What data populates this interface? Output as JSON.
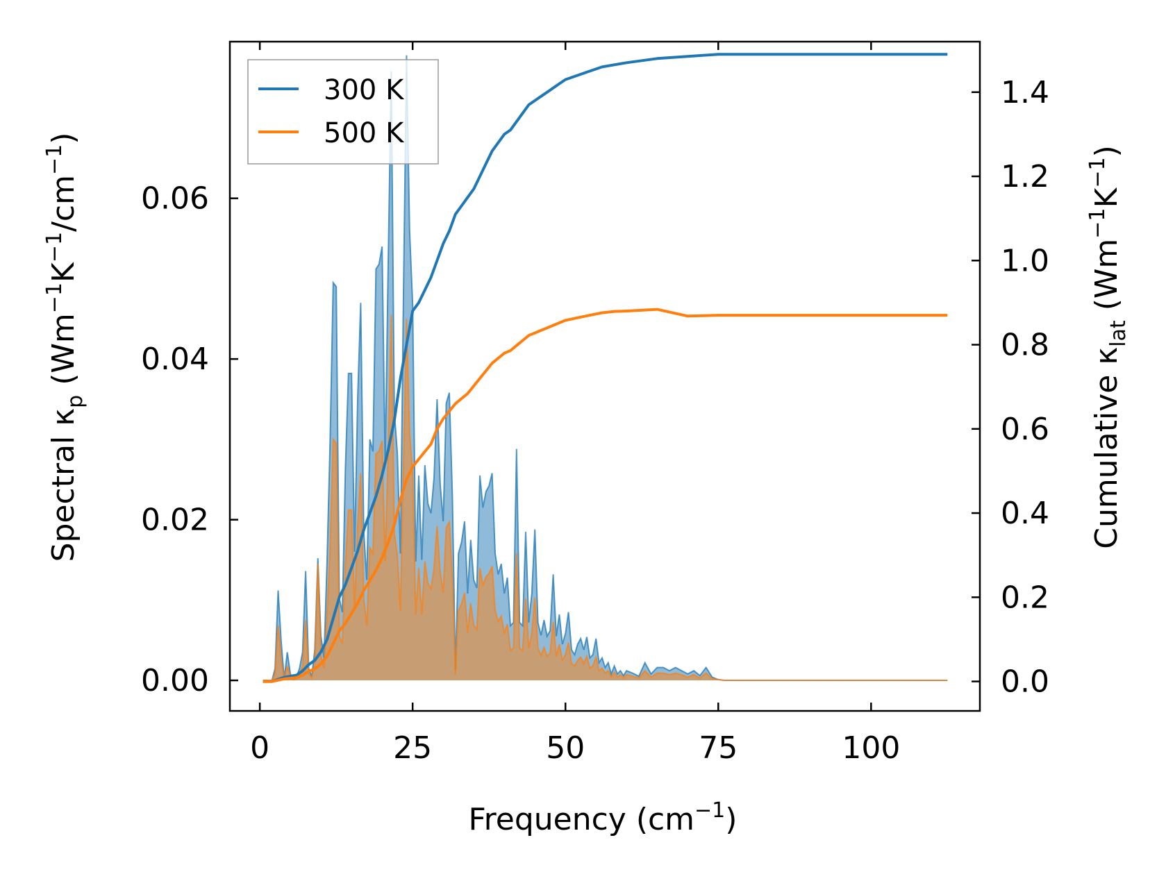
{
  "chart_data": {
    "type": "area",
    "xlabel": "Frequency (cm",
    "xlabel_sup": "−1",
    "xlabel_end": ")",
    "ylabel_left": {
      "pre": "Spectral κ",
      "sub": "p",
      "mid1": " (Wm",
      "sup1": "−1",
      "mid2": "K",
      "sup2": "−1",
      "mid3": "/cm",
      "sup3": "−1",
      "end": ")"
    },
    "ylabel_right": {
      "pre": "Cumulative κ",
      "sub": "lat",
      "mid1": " (Wm",
      "sup1": "−1",
      "mid2": "K",
      "sup2": "−1",
      "end": ")"
    },
    "xlim": [
      -4.9,
      117.8
    ],
    "ylim_left": [
      -0.0038,
      0.0795
    ],
    "ylim_right": [
      -0.07,
      1.52
    ],
    "x_ticks": [
      0,
      25,
      50,
      75,
      100
    ],
    "x_tick_labels": [
      "0",
      "25",
      "50",
      "75",
      "100"
    ],
    "y_left_ticks": [
      0.0,
      0.02,
      0.04,
      0.06
    ],
    "y_left_tick_labels": [
      "0.00",
      "0.02",
      "0.04",
      "0.06"
    ],
    "y_right_ticks": [
      0.0,
      0.2,
      0.4,
      0.6,
      0.8,
      1.0,
      1.2,
      1.4
    ],
    "y_right_tick_labels": [
      "0.0",
      "0.2",
      "0.4",
      "0.6",
      "0.8",
      "1.0",
      "1.2",
      "1.4"
    ],
    "legend_position": "top-left",
    "colors": {
      "s300": "#1f77b4",
      "s500": "#ff7f0e"
    },
    "series": [
      {
        "name": "300 K",
        "spectral": {
          "x": [
            0.5,
            2.0,
            2.5,
            3.0,
            3.5,
            4.0,
            4.5,
            5.0,
            5.5,
            6.0,
            6.5,
            7.0,
            7.5,
            8.0,
            8.5,
            9.0,
            9.5,
            10.0,
            10.5,
            11.0,
            11.5,
            12.0,
            12.5,
            13.0,
            13.5,
            14.0,
            14.5,
            15.0,
            15.5,
            16.0,
            16.5,
            17.0,
            17.5,
            18.0,
            18.5,
            19.0,
            19.5,
            20.0,
            20.5,
            21.0,
            21.5,
            22.0,
            22.5,
            23.0,
            23.5,
            24.0,
            24.5,
            25.0,
            25.5,
            26.0,
            26.5,
            27.0,
            27.5,
            28.0,
            28.5,
            29.0,
            29.5,
            30.0,
            30.5,
            31.0,
            31.5,
            32.0,
            32.5,
            33.0,
            33.5,
            34.0,
            34.5,
            35.0,
            35.5,
            36.0,
            36.5,
            37.0,
            37.5,
            38.0,
            38.5,
            39.0,
            39.5,
            40.0,
            40.5,
            41.0,
            41.5,
            42.0,
            42.5,
            43.0,
            43.5,
            44.0,
            44.5,
            45.0,
            45.5,
            46.0,
            46.5,
            47.0,
            47.5,
            48.0,
            48.5,
            49.0,
            49.5,
            50.0,
            50.5,
            51.0,
            51.5,
            52.0,
            52.5,
            53.0,
            53.5,
            54.0,
            54.5,
            55.0,
            55.5,
            56.0,
            56.5,
            57.0,
            57.5,
            58.0,
            58.5,
            59.0,
            59.5,
            60.0,
            61.0,
            62.0,
            63.0,
            64.0,
            65.0,
            66.0,
            67.0,
            68.0,
            69.0,
            70.0,
            71.0,
            72.0,
            73.0,
            74.0,
            75.0,
            76.0,
            80.0,
            90.0,
            100.0,
            112.5
          ],
          "y": [
            0.0,
            0.0,
            0.0015,
            0.0112,
            0.0048,
            0.0002,
            0.0035,
            0.0008,
            0.0001,
            0.0004,
            0.0015,
            0.0035,
            0.0136,
            0.0015,
            0.0005,
            0.0038,
            0.0152,
            0.0055,
            0.0028,
            0.015,
            0.03,
            0.0495,
            0.049,
            0.0102,
            0.0085,
            0.0265,
            0.0382,
            0.0382,
            0.016,
            0.035,
            0.047,
            0.0185,
            0.0125,
            0.03,
            0.0285,
            0.0512,
            0.0518,
            0.054,
            0.027,
            0.052,
            0.0758,
            0.0335,
            0.0282,
            0.0158,
            0.0482,
            0.0778,
            0.056,
            0.0468,
            0.0148,
            0.0255,
            0.015,
            0.0268,
            0.022,
            0.0208,
            0.0252,
            0.035,
            0.0245,
            0.0198,
            0.0345,
            0.0358,
            0.023,
            0.0012,
            0.0158,
            0.0172,
            0.0198,
            0.0108,
            0.0175,
            0.0125,
            0.0115,
            0.0255,
            0.0215,
            0.0235,
            0.0242,
            0.0258,
            0.0158,
            0.0132,
            0.0145,
            0.0108,
            0.0128,
            0.0068,
            0.0072,
            0.0288,
            0.0072,
            0.0068,
            0.0185,
            0.0072,
            0.0108,
            0.0188,
            0.0072,
            0.0056,
            0.0075,
            0.0055,
            0.0062,
            0.0132,
            0.0055,
            0.0082,
            0.0045,
            0.0058,
            0.0085,
            0.0038,
            0.0032,
            0.0045,
            0.0052,
            0.0038,
            0.0054,
            0.0028,
            0.0032,
            0.0052,
            0.0022,
            0.0028,
            0.0016,
            0.0022,
            0.0008,
            0.0018,
            0.0008,
            0.0012,
            0.0006,
            0.0012,
            0.0009,
            0.0005,
            0.0022,
            0.0008,
            0.0016,
            0.0016,
            0.0012,
            0.0016,
            0.0012,
            0.0008,
            0.0012,
            0.0006,
            0.0016,
            0.0004,
            0.0001,
            0.0,
            0.0,
            0.0,
            0.0,
            0.0
          ]
        },
        "cumulative": {
          "x": [
            0.5,
            2.0,
            4.0,
            6.0,
            7.0,
            8.0,
            9.0,
            10.0,
            11.0,
            12.0,
            13.0,
            14.0,
            15.0,
            16.0,
            17.0,
            18.0,
            19.0,
            20.0,
            21.0,
            22.0,
            23.0,
            24.0,
            25.0,
            26.0,
            27.0,
            28.0,
            29.0,
            30.0,
            31.0,
            32.0,
            33.0,
            34.0,
            35.0,
            36.0,
            37.0,
            38.0,
            39.0,
            40.0,
            41.0,
            42.0,
            43.0,
            44.0,
            45.0,
            46.0,
            47.0,
            48.0,
            49.0,
            50.0,
            52.0,
            54.0,
            56.0,
            58.0,
            60.0,
            65.0,
            70.0,
            75.0,
            80.0,
            100.0,
            112.5
          ],
          "y": [
            0.0,
            0.0,
            0.01,
            0.015,
            0.025,
            0.04,
            0.05,
            0.07,
            0.1,
            0.15,
            0.2,
            0.23,
            0.27,
            0.31,
            0.36,
            0.4,
            0.44,
            0.49,
            0.55,
            0.62,
            0.72,
            0.8,
            0.88,
            0.9,
            0.93,
            0.96,
            1.0,
            1.04,
            1.07,
            1.11,
            1.13,
            1.15,
            1.17,
            1.2,
            1.23,
            1.26,
            1.28,
            1.3,
            1.31,
            1.33,
            1.35,
            1.37,
            1.38,
            1.39,
            1.4,
            1.41,
            1.42,
            1.43,
            1.44,
            1.45,
            1.46,
            1.465,
            1.47,
            1.48,
            1.485,
            1.49,
            1.49,
            1.49,
            1.49
          ]
        }
      },
      {
        "name": "500 K",
        "spectral": {
          "x": [
            0.5,
            2.0,
            2.5,
            3.0,
            3.5,
            4.0,
            4.5,
            5.0,
            5.5,
            6.0,
            6.5,
            7.0,
            7.5,
            8.0,
            8.5,
            9.0,
            9.5,
            10.0,
            10.5,
            11.0,
            11.5,
            12.0,
            12.5,
            13.0,
            13.5,
            14.0,
            14.5,
            15.0,
            15.5,
            16.0,
            16.5,
            17.0,
            17.5,
            18.0,
            18.5,
            19.0,
            19.5,
            20.0,
            20.5,
            21.0,
            21.5,
            22.0,
            22.5,
            23.0,
            23.5,
            24.0,
            24.5,
            25.0,
            25.5,
            26.0,
            26.5,
            27.0,
            27.5,
            28.0,
            28.5,
            29.0,
            29.5,
            30.0,
            30.5,
            31.0,
            31.5,
            32.0,
            32.5,
            33.0,
            33.5,
            34.0,
            34.5,
            35.0,
            35.5,
            36.0,
            36.5,
            37.0,
            37.5,
            38.0,
            38.5,
            39.0,
            39.5,
            40.0,
            40.5,
            41.0,
            41.5,
            42.0,
            42.5,
            43.0,
            43.5,
            44.0,
            44.5,
            45.0,
            45.5,
            46.0,
            46.5,
            47.0,
            47.5,
            48.0,
            48.5,
            49.0,
            49.5,
            50.0,
            50.5,
            51.0,
            51.5,
            52.0,
            52.5,
            53.0,
            53.5,
            54.0,
            54.5,
            55.0,
            55.5,
            56.0,
            56.5,
            57.0,
            57.5,
            58.0,
            58.5,
            59.0,
            59.5,
            60.0,
            61.0,
            62.0,
            63.0,
            64.0,
            65.0,
            66.0,
            67.0,
            68.0,
            69.0,
            70.0,
            71.0,
            72.0,
            73.0,
            74.0,
            75.0,
            76.0,
            80.0,
            90.0,
            100.0,
            112.5
          ],
          "y": [
            0.0,
            0.0,
            0.0008,
            0.0068,
            0.0025,
            0.0001,
            0.0018,
            0.0004,
            0.0001,
            0.0002,
            0.0008,
            0.0018,
            0.0075,
            0.0008,
            0.0003,
            0.002,
            0.0145,
            0.003,
            0.0015,
            0.0082,
            0.0165,
            0.03,
            0.0295,
            0.0055,
            0.0046,
            0.0145,
            0.0212,
            0.0212,
            0.0088,
            0.0192,
            0.0258,
            0.0102,
            0.0068,
            0.0165,
            0.0158,
            0.0282,
            0.0285,
            0.0298,
            0.0148,
            0.0285,
            0.0455,
            0.0184,
            0.0155,
            0.0087,
            0.0265,
            0.045,
            0.0308,
            0.0258,
            0.0082,
            0.014,
            0.0082,
            0.0148,
            0.0121,
            0.0114,
            0.0139,
            0.0192,
            0.0135,
            0.0109,
            0.019,
            0.0197,
            0.0126,
            0.0007,
            0.0087,
            0.0095,
            0.0109,
            0.0059,
            0.0096,
            0.0069,
            0.0063,
            0.014,
            0.0118,
            0.0129,
            0.0133,
            0.0142,
            0.0087,
            0.0073,
            0.008,
            0.0059,
            0.007,
            0.0037,
            0.004,
            0.0158,
            0.004,
            0.0037,
            0.0102,
            0.004,
            0.0059,
            0.0103,
            0.004,
            0.0031,
            0.0041,
            0.003,
            0.0034,
            0.0073,
            0.003,
            0.0045,
            0.0025,
            0.0032,
            0.0047,
            0.0021,
            0.0018,
            0.0025,
            0.0029,
            0.0021,
            0.003,
            0.0015,
            0.0018,
            0.0029,
            0.0012,
            0.0015,
            0.0009,
            0.0012,
            0.0004,
            0.001,
            0.0004,
            0.0007,
            0.0003,
            0.0007,
            0.0005,
            0.0003,
            0.0012,
            0.0004,
            0.0009,
            0.0009,
            0.0007,
            0.0009,
            0.0007,
            0.0004,
            0.0007,
            0.0003,
            0.0009,
            0.0002,
            0.0001,
            0.0,
            0.0,
            0.0,
            0.0,
            0.0
          ]
        },
        "cumulative": {
          "x": [
            0.5,
            2.0,
            4.0,
            6.0,
            7.0,
            8.0,
            9.0,
            10.0,
            11.0,
            12.0,
            13.0,
            14.0,
            15.0,
            16.0,
            17.0,
            18.0,
            19.0,
            20.0,
            21.0,
            22.0,
            23.0,
            24.0,
            25.0,
            26.0,
            27.0,
            28.0,
            29.0,
            30.0,
            31.0,
            32.0,
            33.0,
            34.0,
            35.0,
            36.0,
            37.0,
            38.0,
            39.0,
            40.0,
            41.0,
            42.0,
            43.0,
            44.0,
            45.0,
            46.0,
            47.0,
            48.0,
            49.0,
            50.0,
            52.0,
            54.0,
            56.0,
            58.0,
            60.0,
            65.0,
            70.0,
            75.0,
            80.0,
            100.0,
            112.5
          ],
          "y": [
            0.0,
            0.0,
            0.006,
            0.009,
            0.015,
            0.024,
            0.03,
            0.042,
            0.06,
            0.09,
            0.12,
            0.138,
            0.162,
            0.186,
            0.216,
            0.24,
            0.264,
            0.294,
            0.33,
            0.372,
            0.432,
            0.48,
            0.51,
            0.528,
            0.546,
            0.564,
            0.6,
            0.624,
            0.642,
            0.66,
            0.672,
            0.684,
            0.702,
            0.72,
            0.738,
            0.756,
            0.768,
            0.78,
            0.786,
            0.798,
            0.81,
            0.822,
            0.828,
            0.834,
            0.84,
            0.846,
            0.852,
            0.858,
            0.864,
            0.87,
            0.876,
            0.879,
            0.88,
            0.884,
            0.868,
            0.87,
            0.87,
            0.87,
            0.87
          ]
        }
      }
    ]
  }
}
